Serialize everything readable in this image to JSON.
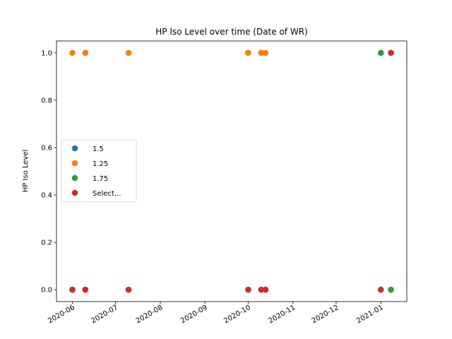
{
  "chart_data": {
    "type": "scatter",
    "title": "HP Iso Level over time (Date of WR)",
    "xlabel": "",
    "ylabel": "HP Iso Level",
    "xlim": [
      "2020-05-21",
      "2021-01-19"
    ],
    "ylim": [
      -0.05,
      1.05
    ],
    "x_ticks": [
      "2020-06",
      "2020-07",
      "2020-08",
      "2020-09",
      "2020-10",
      "2020-11",
      "2020-12",
      "2021-01"
    ],
    "y_ticks": [
      "0.0",
      "0.2",
      "0.4",
      "0.6",
      "0.8",
      "1.0"
    ],
    "legend_position": "center-left",
    "series": [
      {
        "name": "1.5",
        "color": "#1f77b4",
        "points": [
          {
            "x": "2020-06-01",
            "y": 0
          },
          {
            "x": "2020-06-10",
            "y": 1
          },
          {
            "x": "2020-10-01",
            "y": 1
          },
          {
            "x": "2020-10-10",
            "y": 1
          }
        ]
      },
      {
        "name": "1.25",
        "color": "#ff7f0e",
        "points": [
          {
            "x": "2020-06-01",
            "y": 1
          },
          {
            "x": "2020-06-10",
            "y": 1
          },
          {
            "x": "2020-07-10",
            "y": 1
          },
          {
            "x": "2020-10-01",
            "y": 1
          },
          {
            "x": "2020-10-10",
            "y": 1
          },
          {
            "x": "2020-10-13",
            "y": 1
          },
          {
            "x": "2020-06-10",
            "y": 0
          },
          {
            "x": "2020-10-01",
            "y": 0
          }
        ]
      },
      {
        "name": "1.75",
        "color": "#2ca02c",
        "points": [
          {
            "x": "2021-01-01",
            "y": 1
          },
          {
            "x": "2021-01-08",
            "y": 0
          }
        ]
      },
      {
        "name": "Select...",
        "color": "#d62728",
        "points": [
          {
            "x": "2020-06-01",
            "y": 0
          },
          {
            "x": "2020-06-10",
            "y": 0
          },
          {
            "x": "2020-07-10",
            "y": 0
          },
          {
            "x": "2020-10-01",
            "y": 0
          },
          {
            "x": "2020-10-10",
            "y": 0
          },
          {
            "x": "2020-10-13",
            "y": 0
          },
          {
            "x": "2021-01-01",
            "y": 0
          },
          {
            "x": "2021-01-08",
            "y": 1
          }
        ]
      }
    ]
  }
}
